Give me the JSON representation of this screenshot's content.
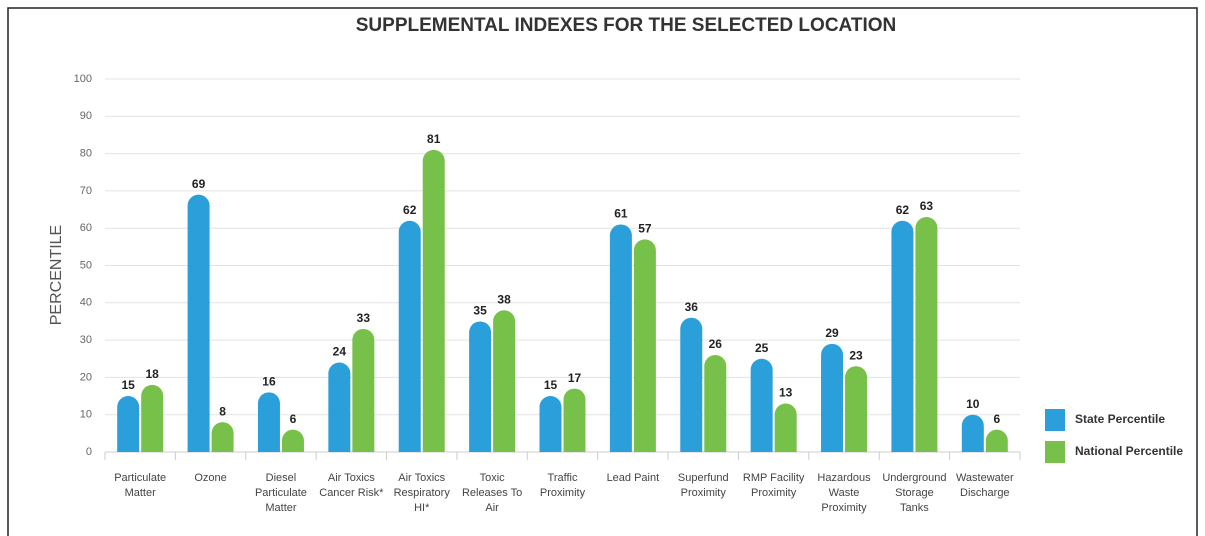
{
  "chart_data": {
    "type": "bar",
    "title": "SUPPLEMENTAL INDEXES FOR THE SELECTED LOCATION",
    "y_label": "PERCENTILE",
    "categories": [
      "Particulate Matter",
      "Ozone",
      "Diesel Particulate Matter",
      "Air Toxics Cancer Risk*",
      "Air Toxics Respiratory HI*",
      "Toxic Releases To Air",
      "Traffic Proximity",
      "Lead Paint",
      "Superfund Proximity",
      "RMP Facility Proximity",
      "Hazardous Waste Proximity",
      "Underground Storage Tanks",
      "Wastewater Discharge"
    ],
    "series": [
      {
        "name": "State Percentile",
        "color": "#2b9fd9",
        "values": [
          15,
          69,
          16,
          24,
          62,
          35,
          15,
          61,
          36,
          25,
          29,
          62,
          10
        ]
      },
      {
        "name": "National Percentile",
        "color": "#77c14a",
        "values": [
          18,
          8,
          6,
          33,
          81,
          38,
          17,
          57,
          26,
          13,
          23,
          63,
          6
        ]
      }
    ],
    "ylim": [
      0,
      100
    ],
    "yticks": [
      0,
      10,
      20,
      30,
      40,
      50,
      60,
      70,
      80,
      90,
      100
    ],
    "grid": true,
    "legend": "right"
  }
}
